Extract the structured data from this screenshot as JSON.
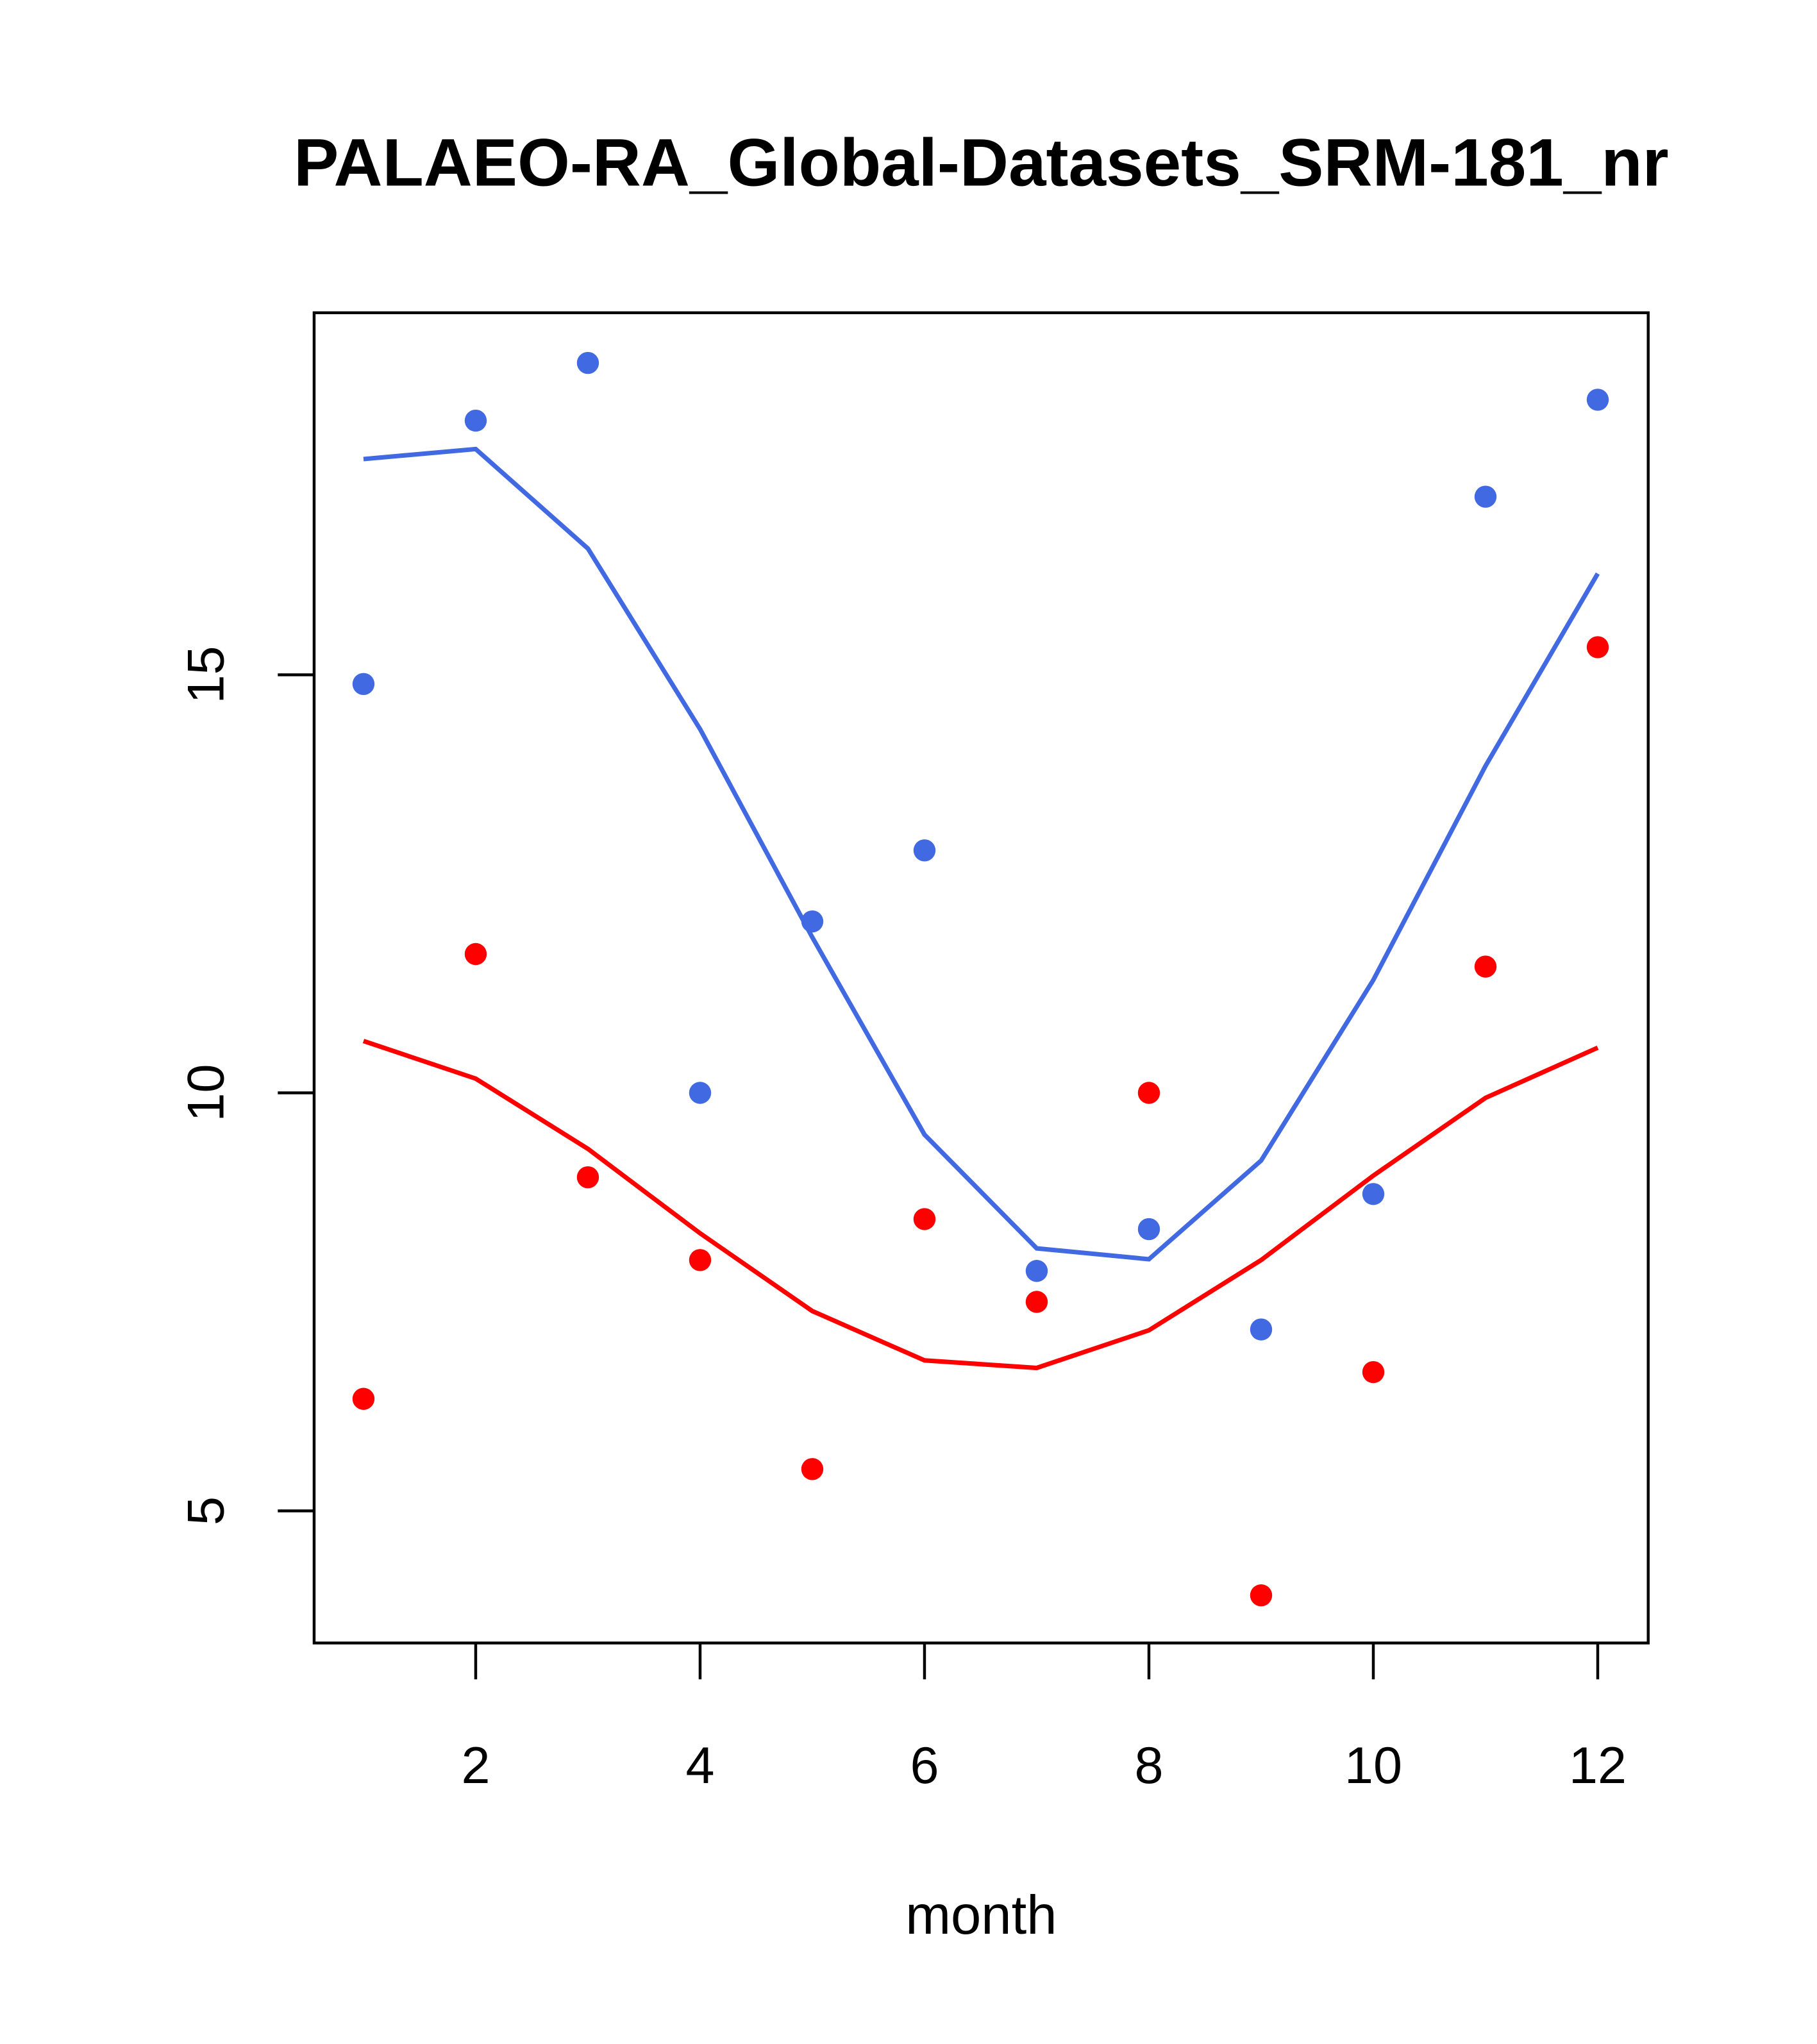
{
  "chart_data": {
    "type": "scatter",
    "title": "PALAEO-RA_Global-Datasets_SRM-181_nr",
    "xlabel": "month",
    "ylabel": "",
    "xlim": [
      0.56,
      12.45
    ],
    "ylim": [
      3.42,
      19.33
    ],
    "x_ticks": [
      2,
      4,
      6,
      8,
      10,
      12
    ],
    "y_ticks": [
      5,
      10,
      15
    ],
    "x": [
      1,
      2,
      3,
      4,
      5,
      6,
      7,
      8,
      9,
      10,
      11,
      12
    ],
    "series": [
      {
        "name": "blue points",
        "kind": "points",
        "color": "#4169E1",
        "values": [
          14.89,
          18.04,
          18.73,
          10.0,
          12.05,
          12.9,
          7.87,
          8.37,
          7.17,
          8.79,
          17.13,
          18.29
        ]
      },
      {
        "name": "blue line",
        "kind": "line",
        "color": "#4169E1",
        "values": [
          17.58,
          17.7,
          16.51,
          14.35,
          11.86,
          9.5,
          8.14,
          8.01,
          9.19,
          11.35,
          13.91,
          16.21
        ]
      },
      {
        "name": "red points",
        "kind": "points",
        "color": "#FF0000",
        "values": [
          6.34,
          11.66,
          8.99,
          8.0,
          5.5,
          8.49,
          7.5,
          10.0,
          3.99,
          6.66,
          11.51,
          15.33
        ]
      },
      {
        "name": "red line",
        "kind": "line",
        "color": "#FF0000",
        "values": [
          10.62,
          10.17,
          9.33,
          8.32,
          7.39,
          6.8,
          6.71,
          7.16,
          8.0,
          9.01,
          9.94,
          10.54
        ]
      }
    ]
  }
}
